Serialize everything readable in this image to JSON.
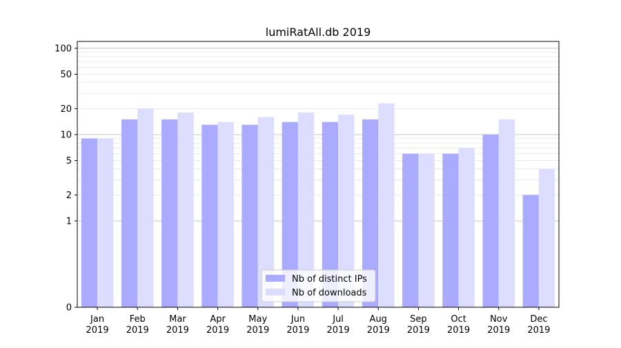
{
  "chart_data": {
    "type": "bar",
    "title": "lumiRatAll.db 2019",
    "xlabel": "",
    "ylabel": "",
    "scale": "symlog",
    "categories": [
      [
        "Jan",
        "2019"
      ],
      [
        "Feb",
        "2019"
      ],
      [
        "Mar",
        "2019"
      ],
      [
        "Apr",
        "2019"
      ],
      [
        "May",
        "2019"
      ],
      [
        "Jun",
        "2019"
      ],
      [
        "Jul",
        "2019"
      ],
      [
        "Aug",
        "2019"
      ],
      [
        "Sep",
        "2019"
      ],
      [
        "Oct",
        "2019"
      ],
      [
        "Nov",
        "2019"
      ],
      [
        "Dec",
        "2019"
      ]
    ],
    "series": [
      {
        "name": "Nb of distinct IPs",
        "color": "#aaaaff",
        "values": [
          9,
          15,
          15,
          13,
          13,
          14,
          14,
          15,
          6,
          6,
          10,
          2
        ]
      },
      {
        "name": "Nb of downloads",
        "color": "#ddddff",
        "values": [
          9,
          20,
          18,
          14,
          16,
          18,
          17,
          23,
          6,
          7,
          15,
          4
        ]
      }
    ],
    "yticks": [
      0,
      1,
      2,
      5,
      10,
      20,
      50,
      100
    ],
    "ylim": [
      0,
      120
    ],
    "grid": true,
    "legend": "bottom-center"
  }
}
